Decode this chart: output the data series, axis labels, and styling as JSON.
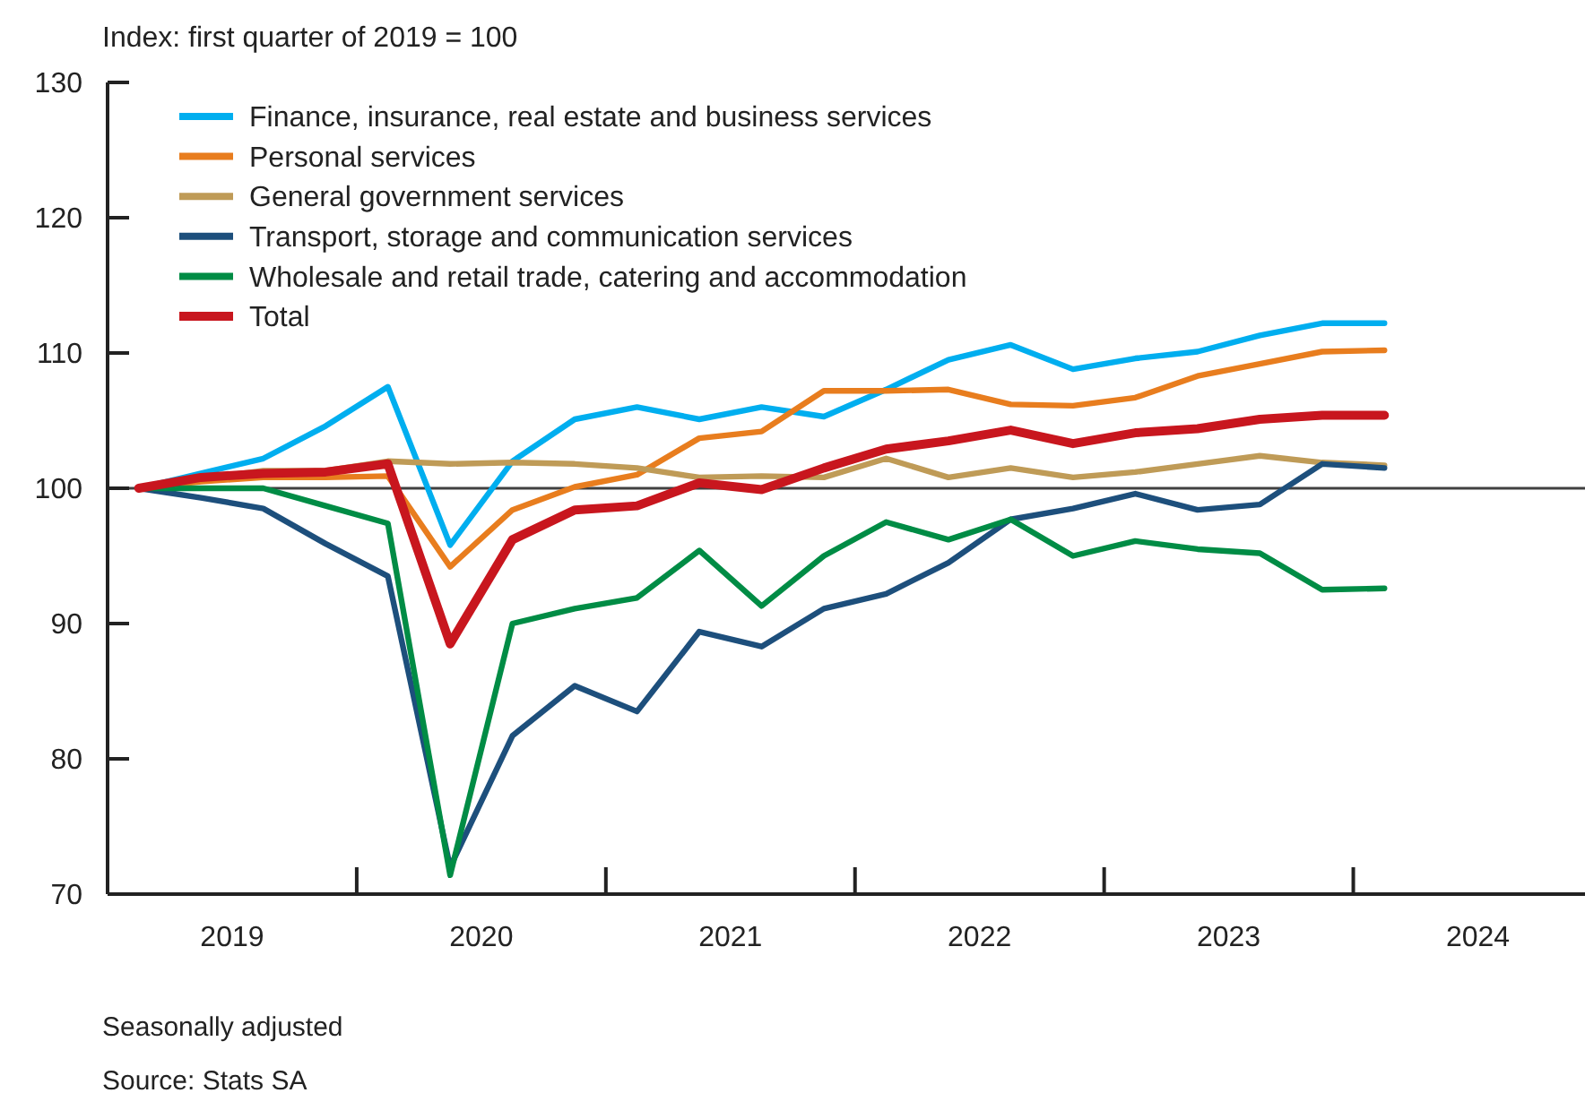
{
  "chart_data": {
    "type": "line",
    "ylabel": "Index: first quarter of 2019 = 100",
    "x": [
      2019.125,
      2019.375,
      2019.625,
      2019.875,
      2020.125,
      2020.375,
      2020.625,
      2020.875,
      2021.125,
      2021.375,
      2021.625,
      2021.875,
      2022.125,
      2022.375,
      2022.625,
      2022.875,
      2023.125,
      2023.375,
      2023.625,
      2023.875,
      2024.125
    ],
    "xlim": [
      2019,
      2024.93
    ],
    "xticks": [
      {
        "value": 2019.5,
        "label": "2019"
      },
      {
        "value": 2020,
        "label": null
      },
      {
        "value": 2020.5,
        "label": "2020"
      },
      {
        "value": 2021,
        "label": null
      },
      {
        "value": 2021.5,
        "label": "2021"
      },
      {
        "value": 2022,
        "label": null
      },
      {
        "value": 2022.5,
        "label": "2022"
      },
      {
        "value": 2023,
        "label": null
      },
      {
        "value": 2023.5,
        "label": "2023"
      },
      {
        "value": 2024,
        "label": null
      },
      {
        "value": 2024.5,
        "label": "2024"
      }
    ],
    "ylim": [
      70,
      130
    ],
    "yticks": [
      70,
      80,
      90,
      100,
      110,
      120,
      130
    ],
    "series": [
      {
        "name": "Finance, insurance, real estate and business services",
        "color": "#00aeef",
        "values": [
          100,
          101.1,
          102.2,
          104.6,
          107.5,
          95.8,
          102.0,
          105.1,
          106.0,
          105.1,
          106.0,
          105.3,
          107.3,
          109.5,
          110.6,
          108.8,
          109.6,
          110.1,
          111.3,
          112.2,
          112.2
        ]
      },
      {
        "name": "Personal services",
        "color": "#e87d1e",
        "values": [
          100,
          100.5,
          100.8,
          100.8,
          100.9,
          94.2,
          98.4,
          100.1,
          101.0,
          103.7,
          104.2,
          107.2,
          107.2,
          107.3,
          106.2,
          106.1,
          106.7,
          108.3,
          109.2,
          110.1,
          110.2
        ]
      },
      {
        "name": "General government services",
        "color": "#bf9b57",
        "values": [
          100,
          100.7,
          101.3,
          101.3,
          102.0,
          101.8,
          101.9,
          101.8,
          101.5,
          100.8,
          100.9,
          100.8,
          102.2,
          100.8,
          101.5,
          100.8,
          101.2,
          101.8,
          102.4,
          101.9,
          101.7
        ]
      },
      {
        "name": "Transport, storage and communication services",
        "color": "#1d4f7c",
        "values": [
          100,
          99.3,
          98.5,
          95.9,
          93.5,
          72.0,
          81.7,
          85.4,
          83.5,
          89.4,
          88.3,
          91.1,
          92.2,
          94.5,
          97.7,
          98.5,
          99.6,
          98.4,
          98.8,
          101.8,
          101.5
        ]
      },
      {
        "name": "Wholesale and retail trade, catering and accommodation",
        "color": "#008c45",
        "values": [
          100,
          100,
          100.0,
          98.7,
          97.4,
          71.4,
          90.0,
          91.1,
          91.9,
          95.4,
          91.3,
          95.0,
          97.5,
          96.2,
          97.7,
          95.0,
          96.1,
          95.5,
          95.2,
          92.5,
          92.6
        ]
      },
      {
        "name": "Total",
        "color": "#c8161e",
        "values": [
          100,
          100.8,
          101.1,
          101.2,
          101.8,
          88.5,
          96.2,
          98.4,
          98.7,
          100.4,
          99.9,
          101.5,
          102.9,
          103.5,
          104.3,
          103.3,
          104.1,
          104.4,
          105.1,
          105.4,
          105.4
        ]
      }
    ],
    "ref_lines": [
      {
        "axis": "y",
        "value": 100,
        "color": "#404040"
      }
    ],
    "legend": "top left",
    "grid": false,
    "annotations": [
      "Seasonally adjusted",
      "Source: Stats SA"
    ]
  }
}
